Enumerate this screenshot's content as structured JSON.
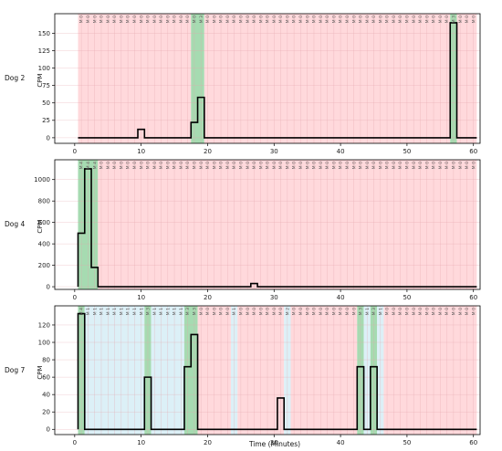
{
  "chart_data": [
    {
      "type": "line",
      "row_label": "Dog 2",
      "ylabel": "CPM",
      "xlim": [
        -3,
        61
      ],
      "ylim": [
        -8,
        178
      ],
      "x_ticks": [
        0,
        10,
        20,
        30,
        40,
        50,
        60
      ],
      "y_ticks": [
        0,
        25,
        50,
        75,
        100,
        125,
        150
      ],
      "x": [
        1,
        2,
        3,
        4,
        5,
        6,
        7,
        8,
        9,
        10,
        11,
        12,
        13,
        14,
        15,
        16,
        17,
        18,
        19,
        20,
        21,
        22,
        23,
        24,
        25,
        26,
        27,
        28,
        29,
        30,
        31,
        32,
        33,
        34,
        35,
        36,
        37,
        38,
        39,
        40,
        41,
        42,
        43,
        44,
        45,
        46,
        47,
        48,
        49,
        50,
        51,
        52,
        53,
        54,
        55,
        56,
        57,
        58,
        59,
        60
      ],
      "y": [
        0,
        0,
        0,
        0,
        0,
        0,
        0,
        0,
        0,
        12,
        0,
        0,
        0,
        0,
        0,
        0,
        0,
        22,
        58,
        0,
        0,
        0,
        0,
        0,
        0,
        0,
        0,
        0,
        0,
        0,
        0,
        0,
        0,
        0,
        0,
        0,
        0,
        0,
        0,
        0,
        0,
        0,
        0,
        0,
        0,
        0,
        0,
        0,
        0,
        0,
        0,
        0,
        0,
        0,
        0,
        0,
        165,
        0,
        0,
        0
      ],
      "bands": [
        {
          "x0": 0.5,
          "x1": 17.5,
          "color": "pink"
        },
        {
          "x0": 17.5,
          "x1": 19.5,
          "color": "green"
        },
        {
          "x0": 19.5,
          "x1": 56.5,
          "color": "pink"
        },
        {
          "x0": 56.5,
          "x1": 57.5,
          "color": "green"
        },
        {
          "x0": 57.5,
          "x1": 60.5,
          "color": "pink"
        }
      ],
      "annotations": [
        "M 0",
        "M 0",
        "M 0",
        "M 0",
        "M 0",
        "M 0",
        "M 0",
        "M 0",
        "M 0",
        "M 0",
        "M 0",
        "M 0",
        "M 0",
        "M 0",
        "M 0",
        "M 0",
        "M 0",
        "M 0",
        "M 3",
        "M 0",
        "M 0",
        "M 0",
        "M 0",
        "M 0",
        "M 0",
        "M 0",
        "M 0",
        "M 0",
        "M 0",
        "M 0",
        "M 0",
        "M 0",
        "M 0",
        "M 0",
        "M 0",
        "M 0",
        "M 0",
        "M 0",
        "M 0",
        "M 0",
        "M 0",
        "M 0",
        "M 0",
        "M 0",
        "M 0",
        "M 0",
        "M 0",
        "M 0",
        "M 0",
        "M 0",
        "M 0",
        "M 0",
        "M 0",
        "M 0",
        "M 0",
        "M 0",
        "M 3",
        "M 0",
        "M 0",
        "M 0"
      ],
      "grid": true
    },
    {
      "type": "line",
      "row_label": "Dog 4",
      "ylabel": "CPM",
      "xlim": [
        -3,
        61
      ],
      "ylim": [
        -25,
        1185
      ],
      "x_ticks": [
        0,
        10,
        20,
        30,
        40,
        50,
        60
      ],
      "y_ticks": [
        0,
        200,
        400,
        600,
        800,
        1000
      ],
      "x": [
        1,
        2,
        3,
        4,
        5,
        6,
        7,
        8,
        9,
        10,
        11,
        12,
        13,
        14,
        15,
        16,
        17,
        18,
        19,
        20,
        21,
        22,
        23,
        24,
        25,
        26,
        27,
        28,
        29,
        30,
        31,
        32,
        33,
        34,
        35,
        36,
        37,
        38,
        39,
        40,
        41,
        42,
        43,
        44,
        45,
        46,
        47,
        48,
        49,
        50,
        51,
        52,
        53,
        54,
        55,
        56,
        57,
        58,
        59,
        60
      ],
      "y": [
        500,
        1100,
        180,
        0,
        0,
        0,
        0,
        0,
        0,
        0,
        0,
        0,
        0,
        0,
        0,
        0,
        0,
        0,
        0,
        0,
        0,
        0,
        0,
        0,
        0,
        0,
        30,
        0,
        0,
        0,
        0,
        0,
        0,
        0,
        0,
        0,
        0,
        0,
        0,
        0,
        0,
        0,
        0,
        0,
        0,
        0,
        0,
        0,
        0,
        0,
        0,
        0,
        0,
        0,
        0,
        0,
        0,
        0,
        0,
        0
      ],
      "bands": [
        {
          "x0": 0.5,
          "x1": 3.5,
          "color": "green"
        },
        {
          "x0": 3.5,
          "x1": 60.5,
          "color": "pink"
        }
      ],
      "annotations": [
        "M 4",
        "M 4",
        "M 4",
        "M 0",
        "M 0",
        "M 0",
        "M 0",
        "M 0",
        "M 0",
        "M 0",
        "M 0",
        "M 0",
        "M 0",
        "M 0",
        "M 0",
        "M 0",
        "M 0",
        "M 0",
        "M 0",
        "M 0",
        "M 0",
        "M 0",
        "M 0",
        "M 0",
        "M 0",
        "M 0",
        "M 0",
        "M 0",
        "M 0",
        "M 0",
        "M 0",
        "M 0",
        "M 0",
        "M 0",
        "M 0",
        "M 0",
        "M 0",
        "M 0",
        "M 0",
        "M 0",
        "M 0",
        "M 0",
        "M 0",
        "M 0",
        "M 0",
        "M 0",
        "M 0",
        "M 0",
        "M 0",
        "M 0",
        "M 0",
        "M 0",
        "M 0",
        "M 0",
        "M 0",
        "M 0",
        "M 0",
        "M 0",
        "M 0",
        "M 0"
      ],
      "grid": true
    },
    {
      "type": "line",
      "row_label": "Dog 7",
      "ylabel": "CPM",
      "xlabel": "Time (Minutes)",
      "xlim": [
        -3,
        61
      ],
      "ylim": [
        -6,
        142
      ],
      "x_ticks": [
        0,
        10,
        20,
        30,
        40,
        50,
        60
      ],
      "y_ticks": [
        0,
        20,
        40,
        60,
        80,
        100,
        120
      ],
      "x": [
        1,
        2,
        3,
        4,
        5,
        6,
        7,
        8,
        9,
        10,
        11,
        12,
        13,
        14,
        15,
        16,
        17,
        18,
        19,
        20,
        21,
        22,
        23,
        24,
        25,
        26,
        27,
        28,
        29,
        30,
        31,
        32,
        33,
        34,
        35,
        36,
        37,
        38,
        39,
        40,
        41,
        42,
        43,
        44,
        45,
        46,
        47,
        48,
        49,
        50,
        51,
        52,
        53,
        54,
        55,
        56,
        57,
        58,
        59,
        60
      ],
      "y": [
        133,
        0,
        0,
        0,
        0,
        0,
        0,
        0,
        0,
        0,
        60,
        0,
        0,
        0,
        0,
        0,
        72,
        109,
        0,
        0,
        0,
        0,
        0,
        0,
        0,
        0,
        0,
        0,
        0,
        0,
        36,
        0,
        0,
        0,
        0,
        0,
        0,
        0,
        0,
        0,
        0,
        0,
        72,
        0,
        72,
        0,
        0,
        0,
        0,
        0,
        0,
        0,
        0,
        0,
        0,
        0,
        0,
        0,
        0,
        0
      ],
      "bands": [
        {
          "x0": 0.5,
          "x1": 1.5,
          "color": "green"
        },
        {
          "x0": 1.5,
          "x1": 10.5,
          "color": "blue"
        },
        {
          "x0": 10.5,
          "x1": 11.5,
          "color": "green"
        },
        {
          "x0": 11.5,
          "x1": 16.5,
          "color": "blue"
        },
        {
          "x0": 16.5,
          "x1": 18.5,
          "color": "green"
        },
        {
          "x0": 18.5,
          "x1": 23.5,
          "color": "pink"
        },
        {
          "x0": 23.5,
          "x1": 24.5,
          "color": "blue"
        },
        {
          "x0": 24.5,
          "x1": 31.5,
          "color": "pink"
        },
        {
          "x0": 31.5,
          "x1": 32.5,
          "color": "blue"
        },
        {
          "x0": 32.5,
          "x1": 42.5,
          "color": "pink"
        },
        {
          "x0": 42.5,
          "x1": 43.5,
          "color": "green"
        },
        {
          "x0": 43.5,
          "x1": 44.5,
          "color": "blue"
        },
        {
          "x0": 44.5,
          "x1": 45.5,
          "color": "green"
        },
        {
          "x0": 45.5,
          "x1": 46.5,
          "color": "blue"
        },
        {
          "x0": 46.5,
          "x1": 60.5,
          "color": "pink"
        }
      ],
      "annotations": [
        "M 4",
        "M 1",
        "M 1",
        "M 1",
        "M 1",
        "M 1",
        "M 1",
        "M 1",
        "M 1",
        "M 1",
        "M 3",
        "M 1",
        "M 1",
        "M 1",
        "M 1",
        "M 1",
        "M 3",
        "M 3",
        "M 0",
        "M 0",
        "M 0",
        "M 0",
        "M 0",
        "M 1",
        "M 0",
        "M 0",
        "M 0",
        "M 0",
        "M 0",
        "M 0",
        "M 0",
        "M 2",
        "M 0",
        "M 0",
        "M 0",
        "M 0",
        "M 0",
        "M 0",
        "M 0",
        "M 0",
        "M 0",
        "M 0",
        "M 3",
        "M 1",
        "M 3",
        "M 1",
        "M 0",
        "M 0",
        "M 0",
        "M 0",
        "M 0",
        "M 0",
        "M 0",
        "M 0",
        "M 0",
        "M 0",
        "M 0",
        "M 0",
        "M 0",
        "M 0"
      ],
      "grid": true
    }
  ],
  "colors": {
    "pink": "#ffd9dc",
    "green": "#a6dbb1",
    "blue": "#dcf0f7",
    "line": "#000000",
    "grid": "#e3a6ad",
    "axis": "#000000",
    "tick_text": "#222222"
  }
}
